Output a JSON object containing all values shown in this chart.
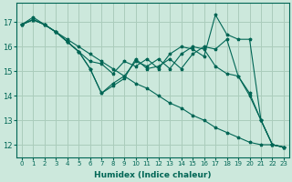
{
  "xlabel": "Humidex (Indice chaleur)",
  "bg_color": "#cce8dc",
  "grid_color": "#aaccbb",
  "line_color": "#006655",
  "xlim": [
    -0.5,
    23.5
  ],
  "ylim": [
    11.5,
    17.8
  ],
  "yticks": [
    12,
    13,
    14,
    15,
    16,
    17
  ],
  "xticks": [
    0,
    1,
    2,
    3,
    4,
    5,
    6,
    7,
    8,
    9,
    10,
    11,
    12,
    13,
    14,
    15,
    16,
    17,
    18,
    19,
    20,
    21,
    22,
    23
  ],
  "series": [
    [
      16.9,
      17.2,
      16.9,
      16.6,
      16.3,
      16.0,
      15.7,
      15.4,
      15.1,
      14.8,
      14.5,
      14.3,
      14.0,
      13.7,
      13.5,
      13.2,
      13.0,
      12.7,
      12.5,
      12.3,
      12.1,
      12.0,
      12.0,
      11.9
    ],
    [
      16.9,
      17.1,
      16.9,
      16.6,
      16.2,
      15.8,
      15.4,
      15.3,
      14.9,
      15.4,
      15.2,
      15.5,
      15.1,
      15.7,
      16.0,
      15.9,
      15.6,
      17.3,
      16.5,
      16.3,
      16.3,
      13.0,
      12.0,
      11.9
    ],
    [
      16.9,
      17.1,
      16.9,
      16.6,
      16.2,
      15.8,
      15.1,
      14.1,
      14.5,
      14.8,
      15.4,
      15.2,
      15.5,
      15.1,
      15.7,
      16.0,
      15.9,
      15.2,
      14.9,
      14.8,
      14.0,
      13.0,
      12.0,
      11.9
    ],
    [
      16.9,
      17.1,
      16.9,
      16.6,
      16.2,
      15.8,
      15.1,
      14.1,
      14.4,
      14.7,
      15.5,
      15.1,
      15.2,
      15.5,
      15.1,
      15.7,
      16.0,
      15.9,
      16.3,
      14.8,
      14.1,
      13.0,
      12.0,
      11.9
    ]
  ]
}
